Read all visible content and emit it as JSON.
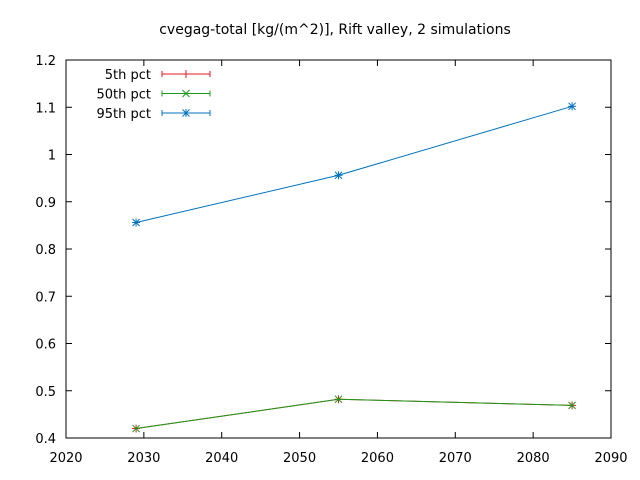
{
  "chart_data": {
    "type": "line",
    "title": "cvegag-total [kg/(m^2)], Rift valley, 2 simulations",
    "xlabel": "",
    "ylabel": "",
    "xlim": [
      2020,
      2090
    ],
    "ylim": [
      0.4,
      1.2
    ],
    "xticks": [
      2020,
      2030,
      2040,
      2050,
      2060,
      2070,
      2080,
      2090
    ],
    "yticks": [
      0.4,
      0.5,
      0.6,
      0.7,
      0.8,
      0.9,
      1,
      1.1,
      1.2
    ],
    "ytick_labels": [
      "0.4",
      "0.5",
      "0.6",
      "0.7",
      "0.8",
      "0.9",
      "1",
      "1.1",
      "1.2"
    ],
    "legend_position": "top-left",
    "grid": false,
    "x": [
      2029,
      2055,
      2085
    ],
    "series": [
      {
        "name": "5th pct",
        "color": "#e41a1c",
        "marker": "plus",
        "values": [
          0.42,
          0.482,
          0.469
        ]
      },
      {
        "name": "50th pct",
        "color": "#1a9a1a",
        "marker": "cross",
        "values": [
          0.42,
          0.482,
          0.469
        ]
      },
      {
        "name": "95th pct",
        "color": "#0072bd",
        "marker": "star",
        "values": [
          0.856,
          0.956,
          1.102
        ]
      }
    ]
  }
}
